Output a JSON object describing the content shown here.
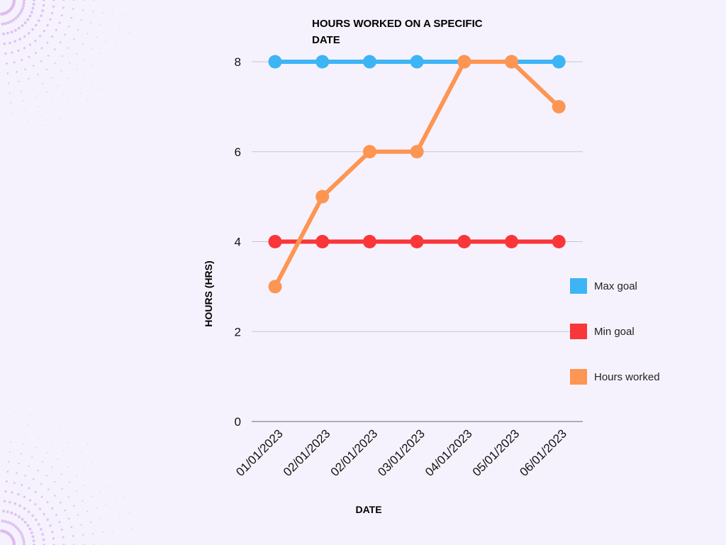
{
  "chart_data": {
    "type": "line",
    "title": "HOURS WORKED ON A SPECIFIC DATE",
    "xlabel": "DATE",
    "ylabel": "HOURS (HRS)",
    "categories": [
      "01/01/2023",
      "02/01/2023",
      "02/01/2023",
      "03/01/2023",
      "04/01/2023",
      "05/01/2023",
      "06/01/2023"
    ],
    "ylim": [
      0,
      8
    ],
    "yticks": [
      0,
      2,
      4,
      6,
      8
    ],
    "grid": true,
    "legend_position": "right",
    "series": [
      {
        "name": "Max goal",
        "color": "#3db5f5",
        "values": [
          8,
          8,
          8,
          8,
          8,
          8,
          8
        ]
      },
      {
        "name": "Min goal",
        "color": "#f93639",
        "values": [
          4,
          4,
          4,
          4,
          4,
          4,
          4
        ]
      },
      {
        "name": "Hours worked",
        "color": "#fd9553",
        "values": [
          3,
          5,
          6,
          6,
          8,
          8,
          7
        ]
      }
    ]
  },
  "colors": {
    "background": "#f6f2fd",
    "gridline": "#c9c6d1",
    "decoration_dots": "#d9b8ee"
  }
}
